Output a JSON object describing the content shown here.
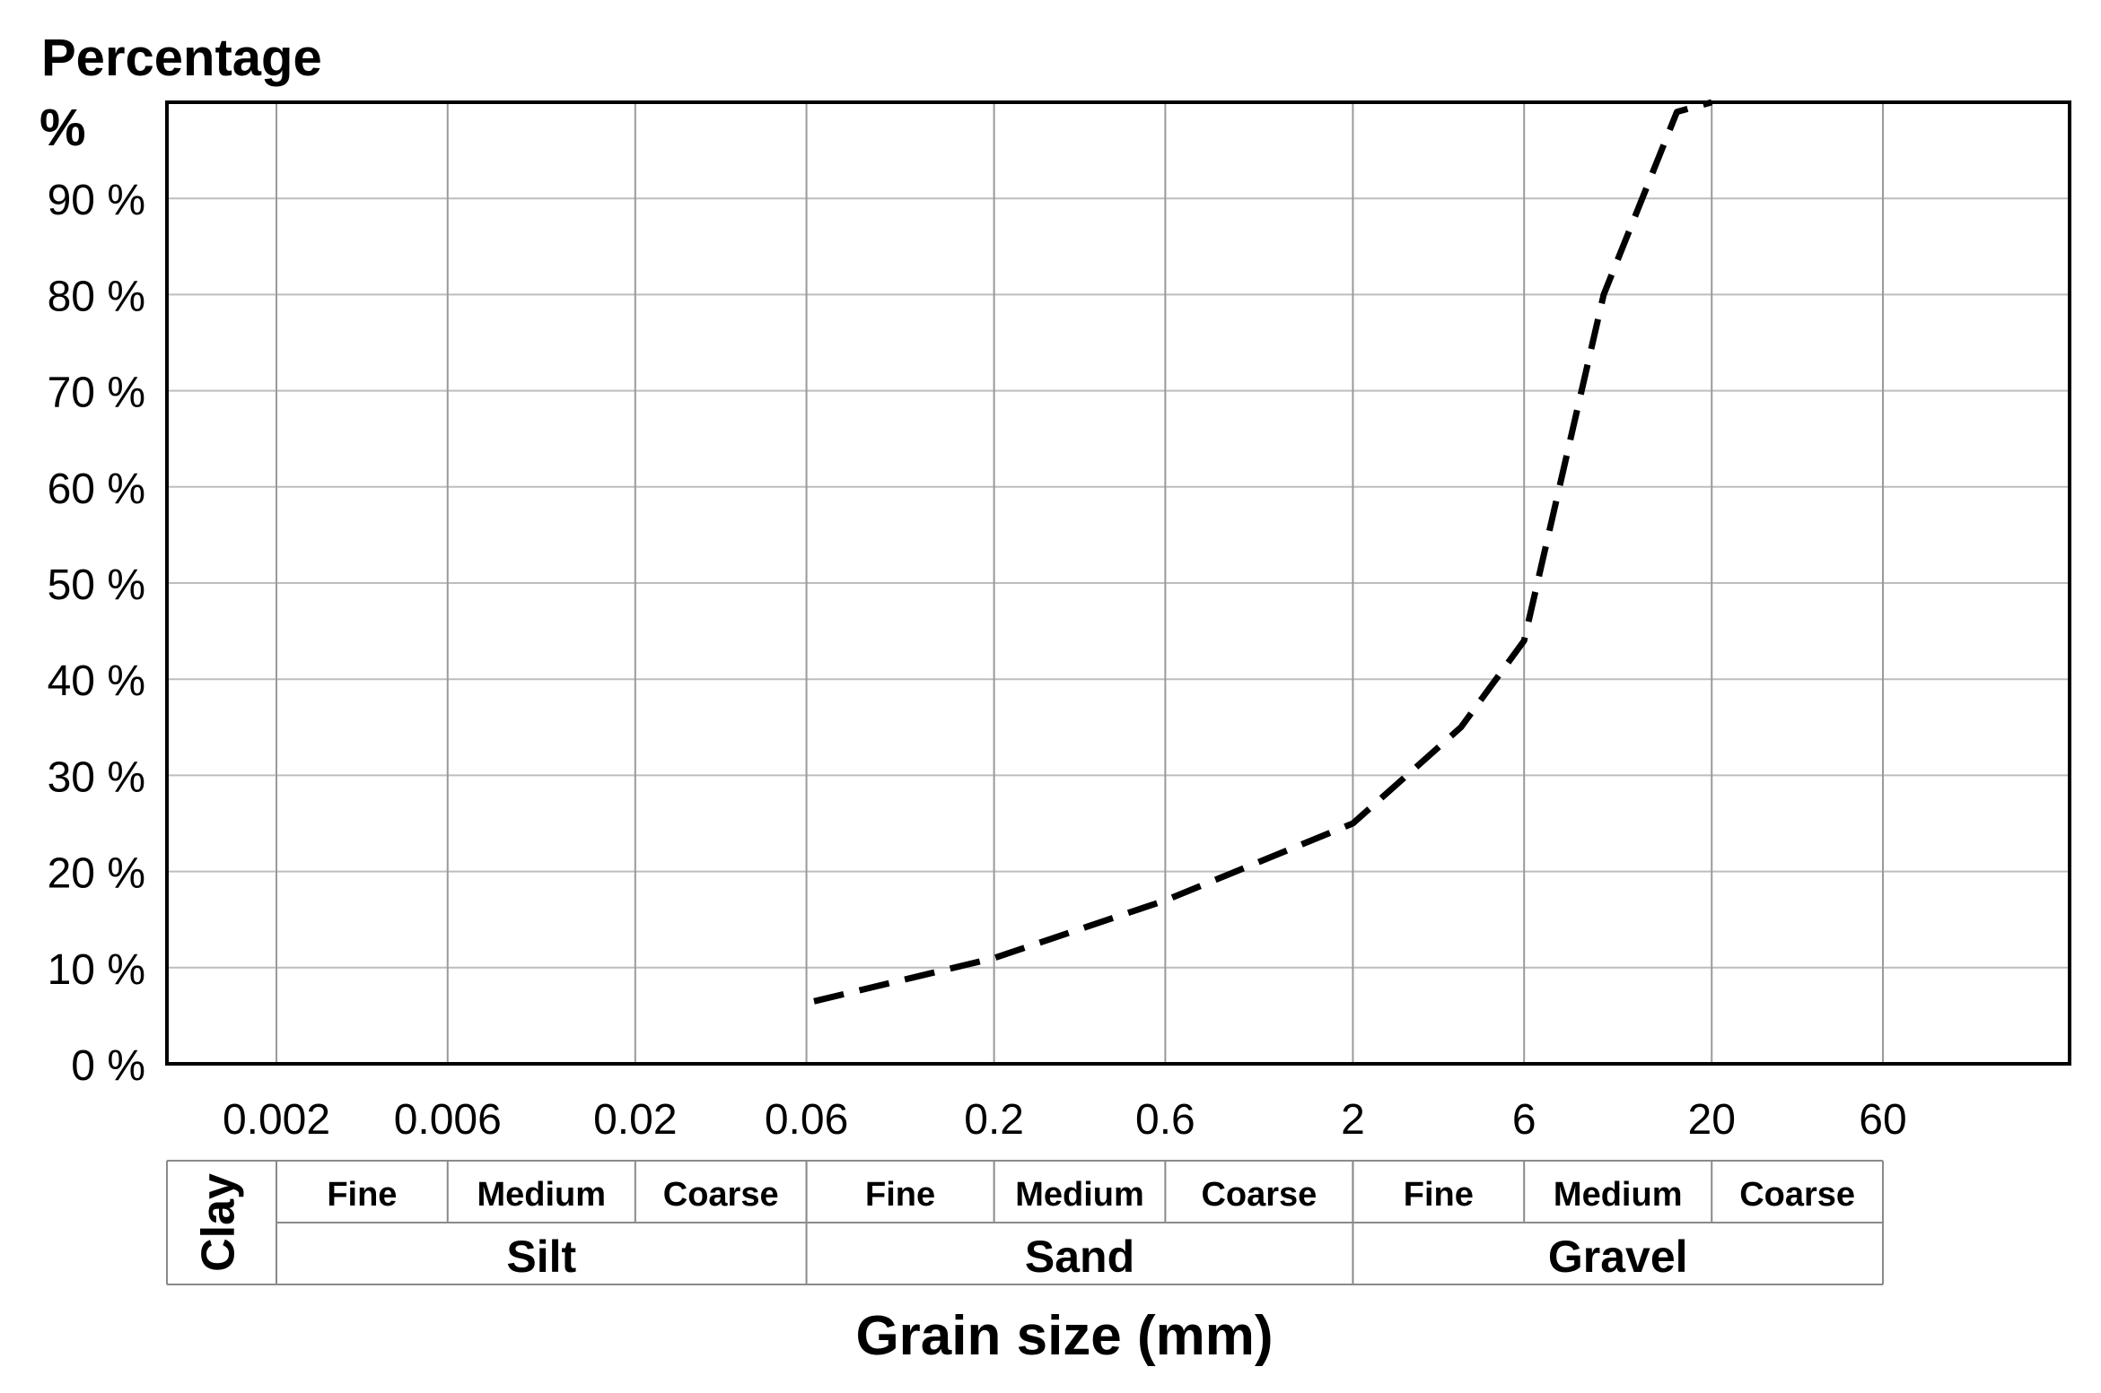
{
  "chart_data": {
    "type": "line",
    "ylabel_line1": "Percentage",
    "ylabel_line2": "%",
    "xlabel": "Grain size (mm)",
    "x_scale": "log",
    "xlim": [
      0.001,
      200
    ],
    "ylim": [
      0,
      100
    ],
    "y_ticks": [
      {
        "value": 0,
        "label": "0 %"
      },
      {
        "value": 10,
        "label": "10 %"
      },
      {
        "value": 20,
        "label": "20 %"
      },
      {
        "value": 30,
        "label": "30 %"
      },
      {
        "value": 40,
        "label": "40 %"
      },
      {
        "value": 50,
        "label": "50 %"
      },
      {
        "value": 60,
        "label": "60 %"
      },
      {
        "value": 70,
        "label": "70 %"
      },
      {
        "value": 80,
        "label": "80 %"
      },
      {
        "value": 90,
        "label": "90 %"
      }
    ],
    "x_ticks": [
      {
        "value": 0.002,
        "label": "0.002"
      },
      {
        "value": 0.006,
        "label": "0.006"
      },
      {
        "value": 0.02,
        "label": "0.02"
      },
      {
        "value": 0.06,
        "label": "0.06"
      },
      {
        "value": 0.2,
        "label": "0.2"
      },
      {
        "value": 0.6,
        "label": "0.6"
      },
      {
        "value": 2,
        "label": "2"
      },
      {
        "value": 6,
        "label": "6"
      },
      {
        "value": 20,
        "label": "20"
      },
      {
        "value": 60,
        "label": "60"
      }
    ],
    "grid": true,
    "series": [
      {
        "line_style": "dashed",
        "color": "#000000",
        "points": [
          {
            "x": 0.063,
            "y": 6.5
          },
          {
            "x": 0.2,
            "y": 11
          },
          {
            "x": 0.6,
            "y": 17
          },
          {
            "x": 2,
            "y": 25
          },
          {
            "x": 4,
            "y": 35
          },
          {
            "x": 6,
            "y": 44
          },
          {
            "x": 10,
            "y": 80
          },
          {
            "x": 16,
            "y": 99
          },
          {
            "x": 20,
            "y": 100
          }
        ]
      }
    ],
    "classification": {
      "clay": {
        "label": "Clay",
        "from": 0.001,
        "to": 0.002
      },
      "groups": [
        {
          "label": "Silt",
          "from": 0.002,
          "to": 0.06,
          "subs": [
            {
              "label": "Fine",
              "from": 0.002,
              "to": 0.006
            },
            {
              "label": "Medium",
              "from": 0.006,
              "to": 0.02
            },
            {
              "label": "Coarse",
              "from": 0.02,
              "to": 0.06
            }
          ]
        },
        {
          "label": "Sand",
          "from": 0.06,
          "to": 2,
          "subs": [
            {
              "label": "Fine",
              "from": 0.06,
              "to": 0.2
            },
            {
              "label": "Medium",
              "from": 0.2,
              "to": 0.6
            },
            {
              "label": "Coarse",
              "from": 0.6,
              "to": 2
            }
          ]
        },
        {
          "label": "Gravel",
          "from": 2,
          "to": 60,
          "subs": [
            {
              "label": "Fine",
              "from": 2,
              "to": 6
            },
            {
              "label": "Medium",
              "from": 6,
              "to": 20
            },
            {
              "label": "Coarse",
              "from": 20,
              "to": 60
            }
          ]
        }
      ]
    }
  }
}
